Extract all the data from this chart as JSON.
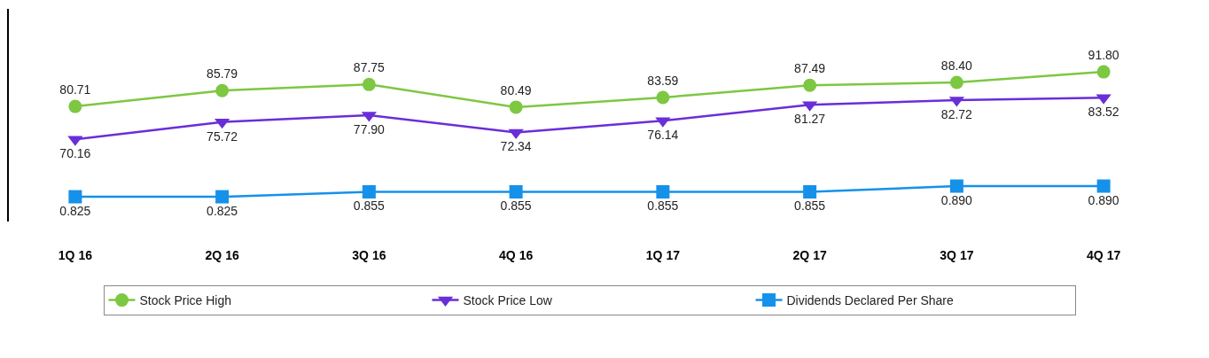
{
  "chart_data": {
    "type": "line",
    "categories": [
      "1Q 16",
      "2Q 16",
      "3Q 16",
      "4Q 16",
      "1Q 17",
      "2Q 17",
      "3Q 17",
      "4Q 17"
    ],
    "series": [
      {
        "name": "Stock Price High",
        "color": "#7dc742",
        "marker": "circle",
        "values": [
          80.71,
          85.79,
          87.75,
          80.49,
          83.59,
          87.49,
          88.4,
          91.8
        ],
        "value_labels": [
          "80.71",
          "85.79",
          "87.75",
          "80.49",
          "83.59",
          "87.49",
          "88.40",
          "91.80"
        ]
      },
      {
        "name": "Stock Price Low",
        "color": "#6a2ed8",
        "marker": "triangle",
        "values": [
          70.16,
          75.72,
          77.9,
          72.34,
          76.14,
          81.27,
          82.72,
          83.52
        ],
        "value_labels": [
          "70.16",
          "75.72",
          "77.90",
          "72.34",
          "76.14",
          "81.27",
          "82.72",
          "83.52"
        ]
      },
      {
        "name": "Dividends Declared Per Share",
        "color": "#1591ea",
        "marker": "square",
        "axis": "y2",
        "values": [
          0.825,
          0.825,
          0.855,
          0.855,
          0.855,
          0.855,
          0.89,
          0.89
        ],
        "value_labels": [
          "0.825",
          "0.825",
          "0.855",
          "0.855",
          "0.855",
          "0.855",
          "0.890",
          "0.890"
        ]
      }
    ],
    "ylim": [
      43.8,
      112.0
    ],
    "y2lim": [
      0.674,
      1.97
    ],
    "tick_labels": "x",
    "legend": "bottom",
    "line_style": "solid"
  }
}
